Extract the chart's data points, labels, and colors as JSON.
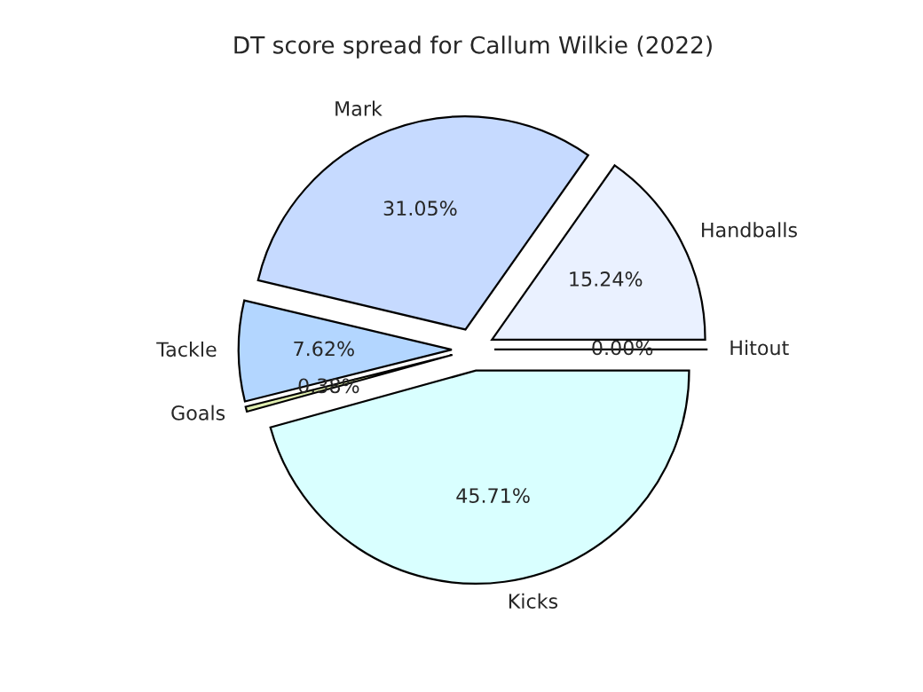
{
  "chart_data": {
    "type": "pie",
    "title": "DT score spread for Callum Wilkie (2022)",
    "categories": [
      "Handballs",
      "Mark",
      "Tackle",
      "Goals",
      "Kicks",
      "Hitout"
    ],
    "values": [
      15.24,
      31.05,
      7.62,
      0.38,
      45.71,
      0
    ],
    "value_labels": [
      "15.24%",
      "31.05%",
      "7.62%",
      "0.38%",
      "45.71%",
      "0.00%"
    ],
    "colors": [
      "#eaf1ff",
      "#c6daff",
      "#b3d6ff",
      "#e0eeb0",
      "#d9ffff",
      "#f0f0f0"
    ]
  }
}
